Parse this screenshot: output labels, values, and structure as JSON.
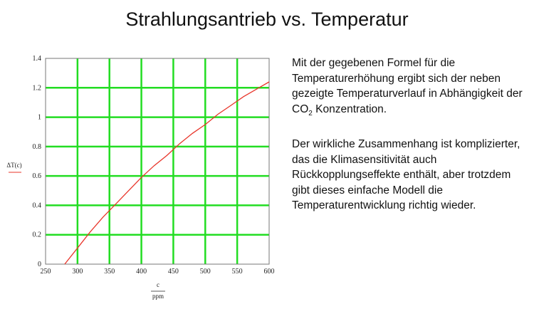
{
  "slide": {
    "title": "Strahlungsantrieb vs. Temperatur"
  },
  "text": {
    "paragraph1_a": "Mit der gegebenen Formel für die Temperaturerhöhung ergibt sich der neben gezeigte Temperaturverlauf in Abhängigkeit der CO",
    "paragraph1_sub": "2",
    "paragraph1_b": " Konzentration.",
    "paragraph2": "Der wirkliche Zusammenhang ist komplizierter, das die Klimasensitivität auch Rückkopplungseffekte enthält, aber trotzdem gibt dieses einfache Modell die Temperaturentwicklung richtig wieder."
  },
  "chart_data": {
    "type": "line",
    "title": "",
    "ylabel": "ΔT(c)",
    "xlabel_num": "c",
    "xlabel_den": "ppm",
    "xlim": [
      250,
      600
    ],
    "ylim": [
      0,
      1.4
    ],
    "xticks": [
      "250",
      "300",
      "350",
      "400",
      "450",
      "500",
      "550",
      "600"
    ],
    "yticks": [
      "0",
      "0.2",
      "0.4",
      "0.6",
      "0.8",
      "1",
      "1.2",
      "1.4"
    ],
    "grid": true,
    "series": [
      {
        "color": "#e8352a",
        "x": [
          280,
          300,
          320,
          340,
          360,
          380,
          400,
          420,
          440,
          460,
          480,
          500,
          520,
          540,
          560,
          580,
          600
        ],
        "y": [
          0,
          0.11,
          0.22,
          0.32,
          0.41,
          0.5,
          0.59,
          0.67,
          0.74,
          0.82,
          0.89,
          0.95,
          1.02,
          1.08,
          1.14,
          1.19,
          1.24
        ]
      }
    ],
    "colors": {
      "grid": "#22dd22",
      "axis": "#777777",
      "line": "#e8352a"
    }
  }
}
